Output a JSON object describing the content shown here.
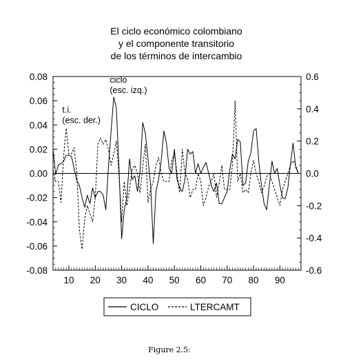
{
  "caption": "Figure 2.5:",
  "chart_data": {
    "type": "line",
    "title": [
      "El ciclo económico colombiano",
      "y el componente transitorio",
      "de los términos de intercambio"
    ],
    "x_range": [
      4,
      98
    ],
    "x_ticks": [
      "10",
      "20",
      "30",
      "40",
      "50",
      "60",
      "70",
      "80",
      "90"
    ],
    "x_tick_values": [
      10,
      20,
      30,
      40,
      50,
      60,
      70,
      80,
      90
    ],
    "y_left": {
      "range": [
        -0.08,
        0.08
      ],
      "ticks": [
        0.08,
        0.06,
        0.04,
        0.02,
        0.0,
        -0.02,
        -0.04,
        -0.06,
        -0.08
      ],
      "tick_labels": [
        "0.08",
        "0.06",
        "0.04",
        "0.02",
        "0.00",
        "-0.02",
        "-0.04",
        "-0.06",
        "-0.08"
      ]
    },
    "y_right": {
      "range": [
        -0.6,
        0.6
      ],
      "ticks": [
        0.6,
        0.4,
        0.2,
        0.0,
        -0.2,
        -0.4,
        -0.6
      ],
      "tick_labels": [
        "0.6",
        "0.4",
        "0.2",
        "0.0",
        "-0.2",
        "-0.4",
        "-0.6"
      ]
    },
    "zero_line": true,
    "legend": {
      "position": "bottom-center"
    },
    "annotations": [
      {
        "lines": [
          "ciclo",
          "(esc. izq.)"
        ],
        "x": 25.5,
        "y_left": 0.075
      },
      {
        "lines": [
          "t.i.",
          "(esc. der.)"
        ],
        "x": 7.5,
        "y_left": 0.05
      }
    ],
    "series": [
      {
        "name": "CICLO",
        "axis": "left",
        "style": "solid",
        "x_start": 4,
        "values": [
          0.02,
          -0.001,
          0.007,
          0.008,
          0.01,
          0.015,
          0.015,
          0.014,
          0.004,
          -0.006,
          -0.01,
          -0.02,
          -0.028,
          -0.018,
          -0.025,
          -0.012,
          -0.02,
          -0.015,
          -0.015,
          -0.018,
          -0.03,
          0.005,
          0.035,
          0.063,
          0.054,
          0.005,
          -0.054,
          -0.03,
          -0.02,
          0.012,
          -0.005,
          -0.002,
          -0.015,
          0.002,
          0.042,
          0.033,
          0.012,
          -0.01,
          -0.058,
          -0.015,
          -0.005,
          0.01,
          0.035,
          0.025,
          0.004,
          0.0,
          0.02,
          -0.005,
          -0.012,
          -0.015,
          -0.005,
          0.02,
          0.016,
          0.018,
          0.0,
          0.008,
          0.0,
          0.005,
          0.009,
          0.0,
          -0.01,
          -0.015,
          -0.008,
          -0.025,
          -0.025,
          -0.02,
          -0.015,
          0.003,
          0.016,
          0.012,
          0.028,
          0.026,
          -0.01,
          -0.008,
          0.01,
          0.017,
          0.035,
          0.037,
          0.01,
          -0.01,
          -0.025,
          -0.03,
          -0.01,
          0.01,
          0.0,
          0.004,
          -0.01,
          -0.02,
          -0.021,
          -0.012,
          0.008,
          0.025,
          0.005,
          0.0
        ]
      },
      {
        "name": "LTERCAMT",
        "axis": "right",
        "style": "dashed",
        "x_start": 4,
        "values": [
          0.02,
          -0.05,
          -0.05,
          -0.18,
          0.1,
          0.28,
          0.12,
          0.12,
          0.16,
          0.0,
          -0.35,
          -0.47,
          -0.28,
          -0.2,
          -0.25,
          -0.3,
          -0.15,
          0.18,
          0.22,
          0.18,
          0.21,
          0.15,
          0.05,
          0.12,
          0.2,
          0.0,
          -0.3,
          -0.05,
          -0.2,
          -0.1,
          0.02,
          0.05,
          0.0,
          -0.12,
          0.04,
          0.18,
          -0.18,
          -0.1,
          -0.05,
          0.05,
          0.1,
          0.0,
          -0.05,
          -0.05,
          -0.05,
          0.08,
          0.12,
          0.0,
          -0.12,
          0.15,
          0.0,
          -0.03,
          -0.15,
          -0.1,
          -0.1,
          0.0,
          -0.05,
          -0.2,
          -0.15,
          -0.08,
          -0.05,
          0.0,
          -0.15,
          -0.06,
          0.05,
          -0.1,
          -0.1,
          -0.1,
          0.05,
          0.45,
          -0.05,
          0.0,
          -0.12,
          -0.1,
          -0.12,
          0.0,
          0.08,
          0.0,
          -0.05,
          -0.12,
          -0.08,
          -0.02,
          0.0,
          -0.05,
          -0.1,
          -0.15,
          -0.2,
          -0.1,
          -0.05,
          0.0,
          0.05,
          0.08,
          0.05,
          0.0
        ]
      }
    ]
  }
}
